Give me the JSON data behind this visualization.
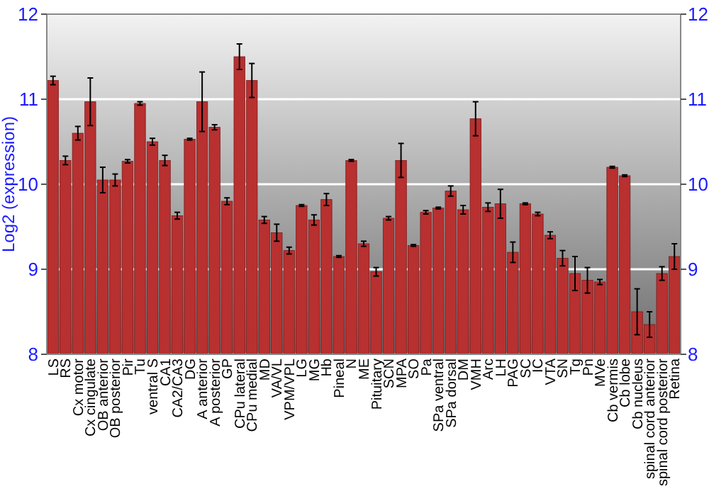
{
  "chart_data": {
    "type": "bar",
    "ylabel": "Log2 (expression)",
    "categories": [
      "LS",
      "RS",
      "Cx motor",
      "Cx cingulate",
      "OB anterior",
      "OB posterior",
      "Pir",
      "Tu",
      "ventral S",
      "CA1",
      "CA2/CA3",
      "DG",
      "A anterior",
      "A posterior",
      "GP",
      "CPu lateral",
      "CPu medial",
      "MD",
      "VA/VL",
      "VPM/VPL",
      "LG",
      "MG",
      "Hb",
      "Pineal",
      "N",
      "ME",
      "Pituitary",
      "SCN",
      "MPA",
      "SO",
      "Pa",
      "SPa ventral",
      "SPa dorsal",
      "DM",
      "VMH",
      "Arc",
      "LH",
      "PAG",
      "SC",
      "IC",
      "VTA",
      "SN",
      "Tg",
      "Pn",
      "MVe",
      "Cb vermis",
      "Cb lobe",
      "Cb nucleus",
      "spinal cord anterior",
      "spinal cord posterior",
      "Retina"
    ],
    "values": [
      11.22,
      10.28,
      10.6,
      10.97,
      10.05,
      10.05,
      10.27,
      10.95,
      10.5,
      10.28,
      9.63,
      10.53,
      10.97,
      10.67,
      9.8,
      11.5,
      11.22,
      9.58,
      9.43,
      9.22,
      9.75,
      9.58,
      9.82,
      9.15,
      10.28,
      9.3,
      8.97,
      9.6,
      10.28,
      9.28,
      9.67,
      9.72,
      9.92,
      9.7,
      10.77,
      9.73,
      9.77,
      9.2,
      9.77,
      9.65,
      9.4,
      9.13,
      8.95,
      8.87,
      8.85,
      10.2,
      10.1,
      8.5,
      8.35,
      8.95,
      9.15
    ],
    "errors": [
      0.05,
      0.05,
      0.08,
      0.28,
      0.15,
      0.07,
      0.02,
      0.02,
      0.04,
      0.06,
      0.04,
      0.01,
      0.35,
      0.03,
      0.04,
      0.15,
      0.2,
      0.04,
      0.1,
      0.04,
      0.01,
      0.06,
      0.07,
      0.01,
      0.01,
      0.03,
      0.05,
      0.02,
      0.2,
      0.01,
      0.02,
      0.01,
      0.06,
      0.05,
      0.2,
      0.05,
      0.17,
      0.12,
      0.01,
      0.02,
      0.04,
      0.09,
      0.2,
      0.15,
      0.03,
      0.01,
      0.01,
      0.27,
      0.15,
      0.08,
      0.15
    ],
    "color": "#b83030",
    "ylim": [
      8,
      12
    ],
    "yticks": [
      8,
      9,
      10,
      11,
      12
    ],
    "y2lim": [
      8,
      12
    ],
    "y2ticks": [
      8,
      9,
      10,
      11,
      12
    ],
    "grid": "y"
  }
}
